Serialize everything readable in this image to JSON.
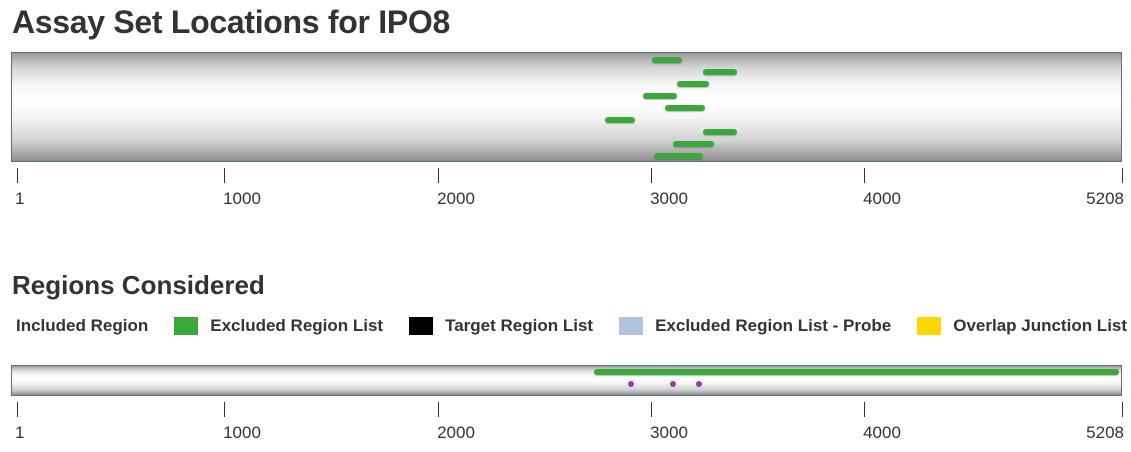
{
  "title": "Assay Set Locations for IPO8",
  "regions_title": "Regions Considered",
  "sequence": {
    "start": 1,
    "end": 5208
  },
  "axis_ticks": [
    {
      "value": 1,
      "label": "1"
    },
    {
      "value": 1000,
      "label": "1000"
    },
    {
      "value": 2000,
      "label": "2000"
    },
    {
      "value": 3000,
      "label": "3000"
    },
    {
      "value": 4000,
      "label": "4000"
    },
    {
      "value": 5208,
      "label": "5208"
    }
  ],
  "assays": [
    {
      "start": 3000,
      "end": 3140,
      "row": 0
    },
    {
      "start": 3240,
      "end": 3400,
      "row": 1
    },
    {
      "start": 3120,
      "end": 3270,
      "row": 2
    },
    {
      "start": 2960,
      "end": 3120,
      "row": 3
    },
    {
      "start": 3060,
      "end": 3250,
      "row": 4
    },
    {
      "start": 2780,
      "end": 2920,
      "row": 5
    },
    {
      "start": 3240,
      "end": 3400,
      "row": 6
    },
    {
      "start": 3100,
      "end": 3290,
      "row": 7
    },
    {
      "start": 3010,
      "end": 3240,
      "row": 8
    }
  ],
  "legend": [
    {
      "label": "Included Region",
      "color": "#3aa83a"
    },
    {
      "label": "Excluded Region List",
      "color": "#000000"
    },
    {
      "label": "Target Region List",
      "color": "#b0c4de"
    },
    {
      "label": "Excluded Region List - Probe",
      "color": "#ffd700"
    },
    {
      "label": "Overlap Junction List",
      "color": "#9b3aa8"
    }
  ],
  "regions": [
    {
      "type": "Included Region",
      "start": 2730,
      "end": 5208,
      "color": "#3aa83a"
    }
  ],
  "junctions": [
    {
      "position": 2900,
      "color": "#9b3aa8"
    },
    {
      "position": 3100,
      "color": "#9b3aa8"
    },
    {
      "position": 3220,
      "color": "#9b3aa8"
    }
  ]
}
